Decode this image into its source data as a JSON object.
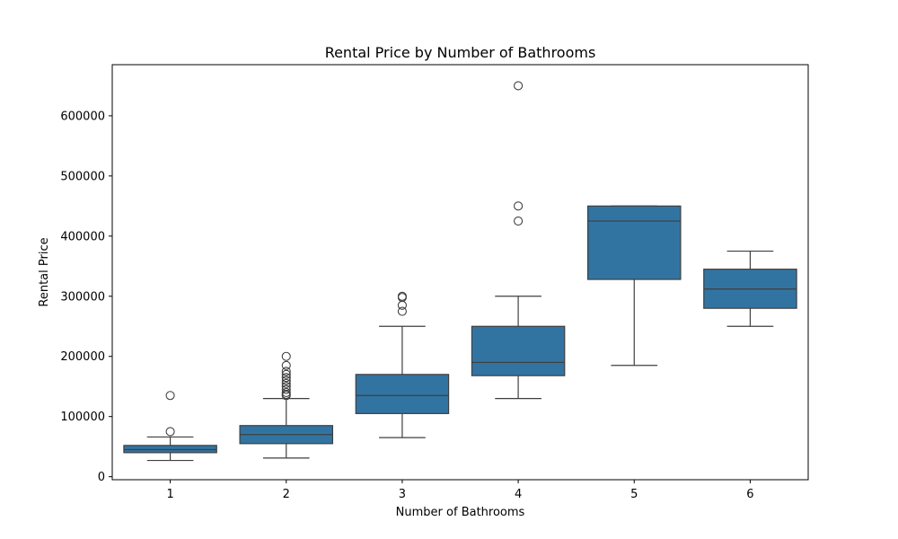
{
  "chart_data": {
    "type": "box",
    "title": "Rental Price by Number of Bathrooms",
    "xlabel": "Number of Bathrooms",
    "ylabel": "Rental Price",
    "categories": [
      "1",
      "2",
      "3",
      "4",
      "5",
      "6"
    ],
    "ylim": [
      -5000,
      685000
    ],
    "yticks": [
      0,
      100000,
      200000,
      300000,
      400000,
      500000,
      600000
    ],
    "box_color": "#3274a1",
    "line_color": "#3f3f3f",
    "grid": false,
    "legend": "none",
    "boxes": [
      {
        "category": "1",
        "whisker_low": 27000,
        "q1": 40000,
        "median": 45000,
        "q3": 52000,
        "whisker_high": 66000,
        "outliers": [
          75000,
          135000
        ]
      },
      {
        "category": "2",
        "whisker_low": 31000,
        "q1": 55000,
        "median": 70000,
        "q3": 85000,
        "whisker_high": 130000,
        "outliers": [
          135000,
          137000,
          140000,
          145000,
          150000,
          155000,
          160000,
          165000,
          170000,
          175000,
          185000,
          200000
        ]
      },
      {
        "category": "3",
        "whisker_low": 65000,
        "q1": 105000,
        "median": 135000,
        "q3": 170000,
        "whisker_high": 250000,
        "outliers": [
          275000,
          285000,
          298000,
          300000
        ]
      },
      {
        "category": "4",
        "whisker_low": 130000,
        "q1": 168000,
        "median": 190000,
        "q3": 250000,
        "whisker_high": 300000,
        "outliers": [
          425000,
          450000,
          650000
        ]
      },
      {
        "category": "5",
        "whisker_low": 185000,
        "q1": 328000,
        "median": 425000,
        "q3": 450000,
        "whisker_high": 450000,
        "outliers": []
      },
      {
        "category": "6",
        "whisker_low": 250000,
        "q1": 280000,
        "median": 312000,
        "q3": 345000,
        "whisker_high": 375000,
        "outliers": []
      }
    ]
  }
}
